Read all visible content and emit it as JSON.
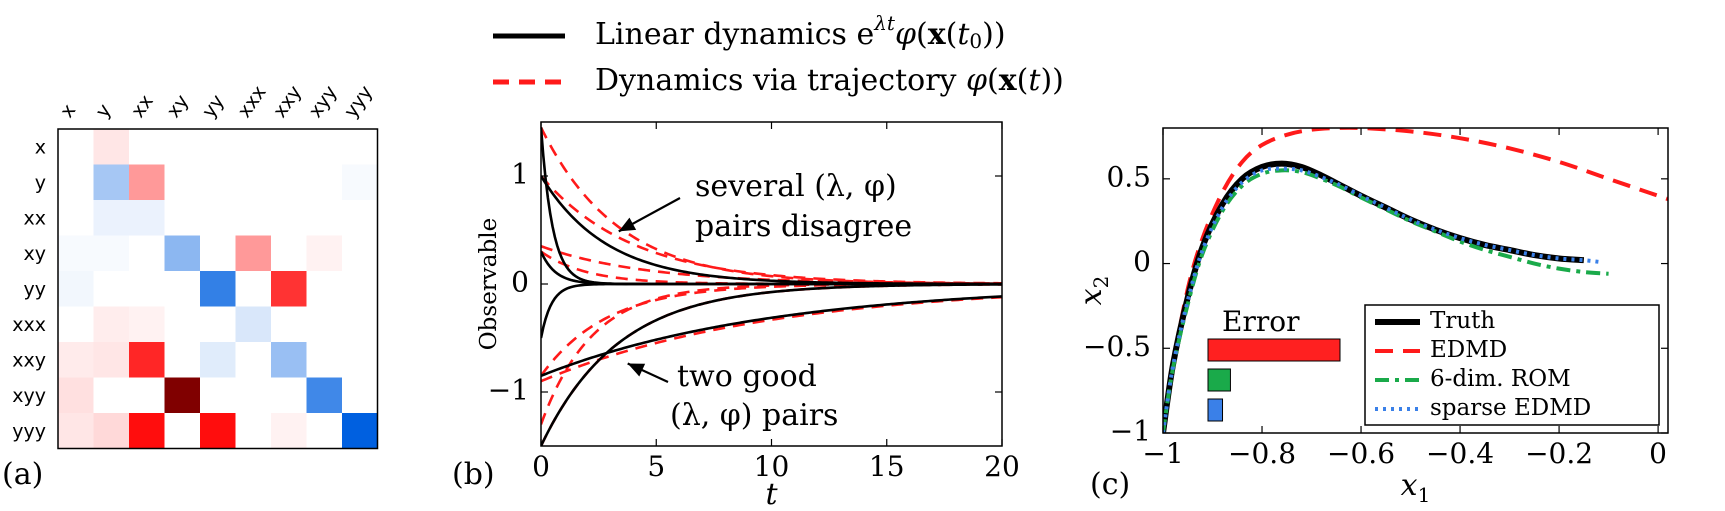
{
  "figure": {
    "top_legend": {
      "entries": [
        {
          "label": "Linear dynamics e^{λt}φ(x(t0))",
          "style": "solid",
          "color": "#000000"
        },
        {
          "label": "Dynamics via trajectory φ(x(t))",
          "style": "dashed",
          "color": "#ff1a1a"
        }
      ]
    }
  },
  "chart_data": [
    {
      "type": "heatmap",
      "panel_label": "(a)",
      "x_labels": [
        "x",
        "y",
        "xx",
        "xy",
        "yy",
        "xxx",
        "xxy",
        "xyy",
        "yyy"
      ],
      "y_labels": [
        "x",
        "y",
        "xx",
        "xy",
        "yy",
        "xxx",
        "xxy",
        "xyy",
        "yyy"
      ],
      "value_range": [
        -1,
        1
      ],
      "colors": {
        "negative": "#0060e0",
        "positive": "#ff0000",
        "zero": "#ffffff",
        "extreme_positive": "#800000"
      },
      "values": [
        [
          0,
          0.1,
          0,
          0,
          0,
          0,
          0,
          0,
          0
        ],
        [
          0,
          -0.35,
          0.4,
          0,
          0,
          0,
          0,
          0,
          -0.03
        ],
        [
          0,
          -0.08,
          -0.08,
          0,
          0,
          0,
          0,
          0,
          0
        ],
        [
          -0.03,
          -0.03,
          0,
          -0.45,
          0,
          0.4,
          0,
          0.05,
          0
        ],
        [
          -0.05,
          0,
          0,
          0,
          -0.8,
          0,
          0.8,
          0,
          0
        ],
        [
          0,
          0.07,
          0.05,
          0,
          0,
          -0.15,
          0,
          0,
          0
        ],
        [
          0.08,
          0.1,
          0.85,
          0,
          -0.12,
          0,
          -0.4,
          0,
          0
        ],
        [
          0.12,
          0,
          0,
          1.4,
          0,
          0,
          0,
          -0.75,
          0
        ],
        [
          0.1,
          0.15,
          0.95,
          0,
          0.95,
          0,
          0.05,
          0,
          -1.0
        ]
      ]
    },
    {
      "type": "line",
      "panel_label": "(b)",
      "xlabel": "t",
      "ylabel": "Observable",
      "xlim": [
        0,
        20
      ],
      "ylim": [
        -1.5,
        1.5
      ],
      "xticks": [
        0,
        5,
        10,
        15,
        20
      ],
      "yticks": [
        -1,
        0,
        1
      ],
      "series": [
        {
          "style": "solid",
          "color": "#000000",
          "y0": 1.0,
          "rate": 0.35,
          "kind": "exp"
        },
        {
          "style": "solid",
          "color": "#000000",
          "y0": 1.45,
          "rate": 2.0,
          "kind": "exp"
        },
        {
          "style": "solid",
          "color": "#000000",
          "y0": 0.3,
          "rate": 1.6,
          "kind": "exp"
        },
        {
          "style": "solid",
          "color": "#000000",
          "y0": -1.5,
          "rate": 0.3,
          "kind": "exp"
        },
        {
          "style": "solid",
          "color": "#000000",
          "y0": -0.85,
          "rate": 0.1,
          "kind": "exp"
        },
        {
          "style": "solid",
          "color": "#000000",
          "y0": -0.5,
          "rate": 2.2,
          "kind": "exp"
        },
        {
          "style": "dashed",
          "color": "#ff1a1a",
          "y0": 1.45,
          "rate": 0.3,
          "kind": "exp"
        },
        {
          "style": "dashed",
          "color": "#ff1a1a",
          "y0": 1.0,
          "rate": 0.25,
          "kind": "exp"
        },
        {
          "style": "dashed",
          "color": "#ff1a1a",
          "y0": 0.35,
          "rate": 0.22,
          "kind": "exp"
        },
        {
          "style": "dashed",
          "color": "#ff1a1a",
          "y0": 0.3,
          "rate": 0.5,
          "kind": "exp"
        },
        {
          "style": "dashed",
          "color": "#ff1a1a",
          "y0": -1.3,
          "rate": 0.45,
          "kind": "exp"
        },
        {
          "style": "dashed",
          "color": "#ff1a1a",
          "y0": -1.5,
          "rate": 0.3,
          "kind": "exp"
        },
        {
          "style": "dashed",
          "color": "#ff1a1a",
          "y0": -0.9,
          "rate": 0.1,
          "kind": "exp"
        },
        {
          "style": "dashed",
          "color": "#ff1a1a",
          "y0": -0.85,
          "rate": 0.35,
          "kind": "exp"
        }
      ],
      "annotations": [
        {
          "text_line1": "several (λ, φ)",
          "text_line2": "pairs disagree",
          "arrow_to": [
            3.2,
            0.45
          ]
        },
        {
          "text_line1": "two good",
          "text_line2": "(λ, φ) pairs",
          "arrow_to": [
            3.5,
            -0.68
          ]
        }
      ]
    },
    {
      "type": "line",
      "panel_label": "(c)",
      "xlabel": "x1",
      "ylabel": "x2",
      "xlim": [
        -1,
        0.02
      ],
      "ylim": [
        -1,
        0.8
      ],
      "xticks": [
        -1,
        -0.8,
        -0.6,
        -0.4,
        -0.2,
        0
      ],
      "xtick_labels": [
        "−1",
        "−0.8",
        "−0.6",
        "−0.4",
        "−0.2",
        "0"
      ],
      "yticks": [
        -1,
        -0.5,
        0,
        0.5
      ],
      "ytick_labels": [
        "−1",
        "−0.5",
        "0",
        "0.5"
      ],
      "series": [
        {
          "name": "Truth",
          "style": "solid",
          "color": "#000000",
          "x": [
            -1.0,
            -0.98,
            -0.95,
            -0.92,
            -0.88,
            -0.84,
            -0.8,
            -0.76,
            -0.72,
            -0.68,
            -0.64,
            -0.6,
            -0.55,
            -0.5,
            -0.45,
            -0.4,
            -0.35,
            -0.3,
            -0.25,
            -0.2,
            -0.15
          ],
          "y": [
            -1.0,
            -0.6,
            -0.2,
            0.1,
            0.35,
            0.5,
            0.57,
            0.59,
            0.57,
            0.52,
            0.46,
            0.4,
            0.33,
            0.26,
            0.2,
            0.15,
            0.11,
            0.08,
            0.05,
            0.03,
            0.02
          ]
        },
        {
          "name": "EDMD",
          "style": "dashed",
          "color": "#ff1a1a",
          "x": [
            -1.0,
            -0.98,
            -0.95,
            -0.92,
            -0.88,
            -0.84,
            -0.8,
            -0.75,
            -0.7,
            -0.65,
            -0.6,
            -0.5,
            -0.4,
            -0.3,
            -0.2,
            -0.1,
            0.02
          ],
          "y": [
            -1.0,
            -0.6,
            -0.15,
            0.15,
            0.42,
            0.6,
            0.7,
            0.76,
            0.79,
            0.8,
            0.8,
            0.78,
            0.74,
            0.68,
            0.6,
            0.5,
            0.38
          ]
        },
        {
          "name": "6-dim. ROM",
          "style": "dashdot",
          "color": "#1aaa4a",
          "x": [
            -1.0,
            -0.98,
            -0.95,
            -0.92,
            -0.88,
            -0.84,
            -0.8,
            -0.76,
            -0.72,
            -0.68,
            -0.64,
            -0.6,
            -0.55,
            -0.5,
            -0.45,
            -0.4,
            -0.35,
            -0.3,
            -0.25,
            -0.2,
            -0.15,
            -0.1
          ],
          "y": [
            -1.0,
            -0.62,
            -0.24,
            0.06,
            0.31,
            0.46,
            0.53,
            0.55,
            0.54,
            0.5,
            0.45,
            0.39,
            0.32,
            0.25,
            0.19,
            0.13,
            0.08,
            0.04,
            0.0,
            -0.03,
            -0.05,
            -0.06
          ]
        },
        {
          "name": "sparse EDMD",
          "style": "dotted",
          "color": "#3a80e8",
          "x": [
            -1.0,
            -0.98,
            -0.95,
            -0.92,
            -0.88,
            -0.84,
            -0.8,
            -0.76,
            -0.72,
            -0.68,
            -0.64,
            -0.6,
            -0.55,
            -0.5,
            -0.45,
            -0.4,
            -0.35,
            -0.3,
            -0.25,
            -0.2,
            -0.15,
            -0.12
          ],
          "y": [
            -1.0,
            -0.61,
            -0.22,
            0.08,
            0.33,
            0.48,
            0.55,
            0.56,
            0.55,
            0.51,
            0.46,
            0.4,
            0.33,
            0.26,
            0.2,
            0.15,
            0.11,
            0.08,
            0.05,
            0.03,
            0.02,
            0.01
          ]
        }
      ],
      "legend": {
        "placement": "bottom-right",
        "labels": [
          "Truth",
          "EDMD",
          "6-dim. ROM",
          "sparse EDMD"
        ]
      },
      "error_inset": {
        "title": "Error",
        "bars": [
          {
            "name": "EDMD",
            "value": 1.0,
            "color": "#ff2020"
          },
          {
            "name": "6-dim. ROM",
            "value": 0.17,
            "color": "#1aaa4a"
          },
          {
            "name": "sparse EDMD",
            "value": 0.11,
            "color": "#3a80e8"
          }
        ]
      }
    }
  ]
}
